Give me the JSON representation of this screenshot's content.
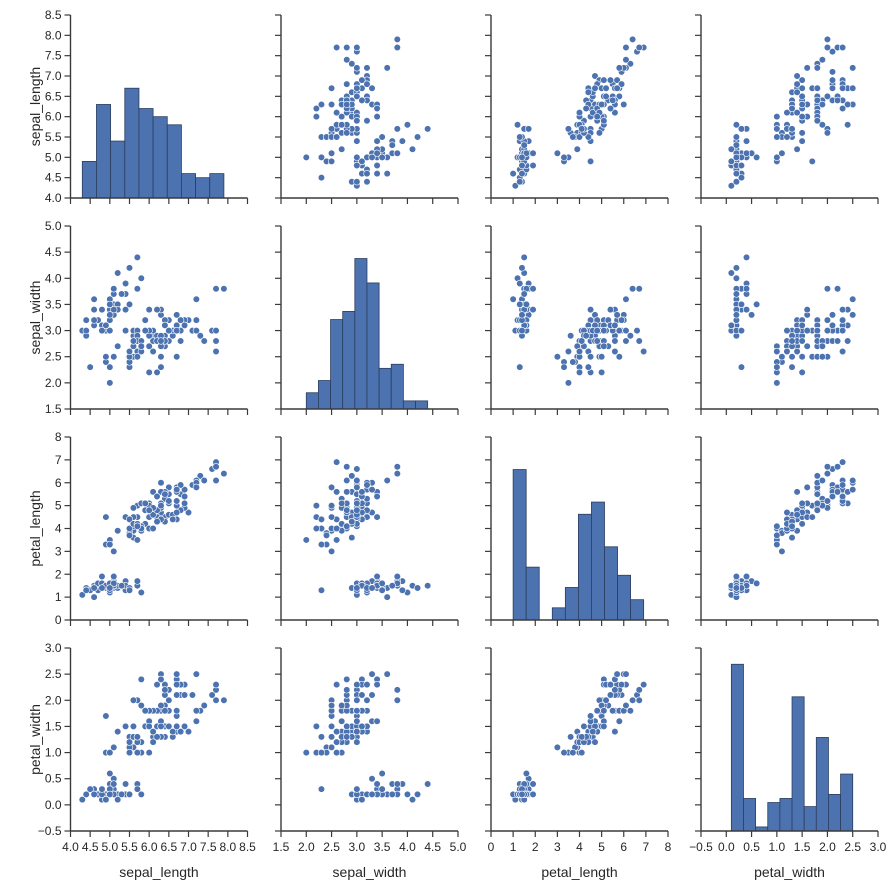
{
  "chart_data": {
    "type": "scatter",
    "subtype": "pairplot",
    "grid": false,
    "colors": {
      "marker": "#4c72b0",
      "marker_edge": "#ffffff",
      "bar_edge": "#2b3e5f",
      "spine": "#3a3a3a"
    },
    "variables": [
      "sepal_length",
      "sepal_width",
      "petal_length",
      "petal_width"
    ],
    "axis_ranges": {
      "sepal_length": [
        4.0,
        8.5
      ],
      "sepal_width": [
        1.5,
        5.0
      ],
      "petal_length": [
        0,
        8
      ],
      "petal_width": [
        -0.5,
        3.0
      ]
    },
    "ticks": {
      "sepal_length": [
        "4.0",
        "4.5",
        "5.0",
        "5.5",
        "6.0",
        "6.5",
        "7.0",
        "7.5",
        "8.0",
        "8.5"
      ],
      "sepal_width": [
        "1.5",
        "2.0",
        "2.5",
        "3.0",
        "3.5",
        "4.0",
        "4.5",
        "5.0"
      ],
      "petal_length": [
        "0",
        "1",
        "2",
        "3",
        "4",
        "5",
        "6",
        "7",
        "8"
      ],
      "petal_width": [
        "−0.5",
        "0.0",
        "0.5",
        "1.0",
        "1.5",
        "2.0",
        "2.5",
        "3.0"
      ]
    },
    "diagonal": {
      "type": "histogram",
      "bins": 10,
      "count_range": [
        0,
        45
      ],
      "counts": {
        "sepal_length": [
          9,
          23,
          14,
          27,
          22,
          20,
          18,
          6,
          5,
          6
        ],
        "sepal_width": [
          4,
          7,
          22,
          24,
          37,
          31,
          10,
          11,
          2,
          2
        ],
        "petal_length": [
          37,
          13,
          0,
          3,
          8,
          26,
          29,
          18,
          11,
          5
        ],
        "petal_width": [
          41,
          8,
          1,
          7,
          8,
          33,
          6,
          23,
          9,
          14
        ]
      }
    },
    "data": {
      "sepal_length": [
        5.1,
        4.9,
        4.7,
        4.6,
        5.0,
        5.4,
        4.6,
        5.0,
        4.4,
        4.9,
        5.4,
        4.8,
        4.8,
        4.3,
        5.8,
        5.7,
        5.4,
        5.1,
        5.7,
        5.1,
        5.4,
        5.1,
        4.6,
        5.1,
        4.8,
        5.0,
        5.0,
        5.2,
        5.2,
        4.7,
        4.8,
        5.4,
        5.2,
        5.5,
        4.9,
        5.0,
        5.5,
        4.9,
        4.4,
        5.1,
        5.0,
        4.5,
        4.4,
        5.0,
        5.1,
        4.8,
        5.1,
        4.6,
        5.3,
        5.0,
        7.0,
        6.4,
        6.9,
        5.5,
        6.5,
        5.7,
        6.3,
        4.9,
        6.6,
        5.2,
        5.0,
        5.9,
        6.0,
        6.1,
        5.6,
        6.7,
        5.6,
        5.8,
        6.2,
        5.6,
        5.9,
        6.1,
        6.3,
        6.1,
        6.4,
        6.6,
        6.8,
        6.7,
        6.0,
        5.7,
        5.5,
        5.5,
        5.8,
        6.0,
        5.4,
        6.0,
        6.7,
        6.3,
        5.6,
        5.5,
        5.5,
        6.1,
        5.8,
        5.0,
        5.6,
        5.7,
        5.7,
        6.2,
        5.1,
        5.7,
        6.3,
        5.8,
        7.1,
        6.3,
        6.5,
        7.6,
        4.9,
        7.3,
        6.7,
        7.2,
        6.5,
        6.4,
        6.8,
        5.7,
        5.8,
        6.4,
        6.5,
        7.7,
        7.7,
        6.0,
        6.9,
        5.6,
        7.7,
        6.3,
        6.7,
        7.2,
        6.2,
        6.1,
        6.4,
        7.2,
        7.4,
        7.9,
        6.4,
        6.3,
        6.1,
        7.7,
        6.3,
        6.4,
        6.0,
        6.9,
        6.7,
        6.9,
        5.8,
        6.8,
        6.7,
        6.7,
        6.3,
        6.5,
        6.2,
        5.9
      ],
      "sepal_width": [
        3.5,
        3.0,
        3.2,
        3.1,
        3.6,
        3.9,
        3.4,
        3.4,
        2.9,
        3.1,
        3.7,
        3.4,
        3.0,
        3.0,
        4.0,
        4.4,
        3.9,
        3.5,
        3.8,
        3.8,
        3.4,
        3.7,
        3.6,
        3.3,
        3.4,
        3.0,
        3.4,
        3.5,
        3.4,
        3.2,
        3.1,
        3.4,
        4.1,
        4.2,
        3.1,
        3.2,
        3.5,
        3.1,
        3.0,
        3.4,
        3.5,
        2.3,
        3.2,
        3.5,
        3.8,
        3.0,
        3.8,
        3.2,
        3.7,
        3.3,
        3.2,
        3.2,
        3.1,
        2.3,
        2.8,
        2.8,
        3.3,
        2.4,
        2.9,
        2.7,
        2.0,
        3.0,
        2.2,
        2.9,
        2.9,
        3.1,
        3.0,
        2.7,
        2.2,
        2.5,
        3.2,
        2.8,
        2.5,
        2.8,
        2.9,
        3.0,
        2.8,
        3.0,
        2.9,
        2.6,
        2.4,
        2.4,
        2.7,
        2.7,
        3.0,
        3.4,
        3.1,
        2.3,
        3.0,
        2.5,
        2.6,
        3.0,
        2.6,
        2.3,
        2.7,
        3.0,
        2.9,
        2.9,
        2.5,
        2.8,
        3.3,
        2.7,
        3.0,
        2.9,
        3.0,
        3.0,
        2.5,
        2.9,
        2.5,
        3.6,
        3.2,
        2.7,
        3.0,
        2.5,
        2.8,
        3.2,
        3.0,
        3.8,
        2.6,
        2.2,
        3.2,
        2.8,
        2.8,
        2.7,
        3.3,
        3.2,
        2.8,
        3.0,
        2.8,
        3.0,
        2.8,
        3.8,
        2.8,
        2.8,
        2.6,
        3.0,
        3.4,
        3.1,
        3.0,
        3.1,
        3.1,
        3.1,
        2.7,
        3.2,
        3.3,
        3.0,
        2.5,
        3.0,
        3.4,
        3.0
      ],
      "petal_length": [
        1.4,
        1.4,
        1.3,
        1.5,
        1.4,
        1.7,
        1.4,
        1.5,
        1.4,
        1.5,
        1.5,
        1.6,
        1.4,
        1.1,
        1.2,
        1.5,
        1.3,
        1.4,
        1.7,
        1.5,
        1.7,
        1.5,
        1.0,
        1.7,
        1.9,
        1.6,
        1.6,
        1.5,
        1.4,
        1.6,
        1.6,
        1.5,
        1.5,
        1.4,
        1.5,
        1.2,
        1.3,
        1.5,
        1.3,
        1.5,
        1.3,
        1.3,
        1.3,
        1.6,
        1.9,
        1.4,
        1.6,
        1.4,
        1.5,
        1.4,
        4.7,
        4.5,
        4.9,
        4.0,
        4.6,
        4.5,
        4.7,
        3.3,
        4.6,
        3.9,
        3.5,
        4.2,
        4.0,
        4.7,
        3.6,
        4.4,
        4.5,
        4.1,
        4.5,
        3.9,
        4.8,
        4.0,
        4.9,
        4.7,
        4.3,
        4.4,
        4.8,
        5.0,
        4.5,
        3.5,
        3.8,
        3.7,
        3.9,
        5.1,
        4.5,
        4.5,
        4.7,
        4.4,
        4.1,
        4.0,
        4.4,
        4.6,
        4.0,
        3.3,
        4.2,
        4.2,
        4.2,
        4.3,
        3.0,
        4.1,
        6.0,
        5.1,
        5.9,
        5.6,
        5.8,
        6.6,
        4.5,
        6.3,
        5.8,
        6.1,
        5.1,
        5.3,
        5.5,
        5.0,
        5.1,
        5.3,
        5.5,
        6.7,
        6.9,
        5.0,
        5.7,
        4.9,
        6.7,
        4.9,
        5.7,
        6.0,
        4.8,
        4.9,
        5.6,
        5.8,
        6.1,
        6.4,
        5.6,
        5.1,
        5.6,
        6.1,
        5.6,
        5.5,
        4.8,
        5.4,
        5.6,
        5.1,
        5.1,
        5.9,
        5.7,
        5.2,
        5.0,
        5.2,
        5.4,
        5.1
      ],
      "petal_width": [
        0.2,
        0.2,
        0.2,
        0.2,
        0.2,
        0.4,
        0.3,
        0.2,
        0.2,
        0.1,
        0.2,
        0.2,
        0.1,
        0.1,
        0.2,
        0.4,
        0.4,
        0.3,
        0.3,
        0.3,
        0.2,
        0.4,
        0.2,
        0.5,
        0.2,
        0.2,
        0.4,
        0.2,
        0.2,
        0.2,
        0.2,
        0.4,
        0.1,
        0.2,
        0.1,
        0.2,
        0.2,
        0.1,
        0.2,
        0.2,
        0.3,
        0.3,
        0.2,
        0.6,
        0.4,
        0.3,
        0.2,
        0.2,
        0.2,
        0.2,
        1.4,
        1.5,
        1.5,
        1.3,
        1.5,
        1.3,
        1.6,
        1.0,
        1.3,
        1.4,
        1.0,
        1.5,
        1.0,
        1.4,
        1.3,
        1.4,
        1.5,
        1.0,
        1.5,
        1.1,
        1.8,
        1.3,
        1.5,
        1.2,
        1.3,
        1.4,
        1.4,
        1.7,
        1.5,
        1.0,
        1.1,
        1.0,
        1.2,
        1.6,
        1.5,
        1.6,
        1.5,
        1.3,
        1.3,
        1.3,
        1.2,
        1.4,
        1.2,
        1.0,
        1.3,
        1.2,
        1.3,
        1.3,
        1.1,
        1.3,
        2.5,
        1.9,
        2.1,
        1.8,
        2.2,
        2.1,
        1.7,
        1.8,
        1.8,
        2.5,
        2.0,
        1.9,
        2.1,
        2.0,
        2.4,
        2.3,
        1.8,
        2.2,
        2.3,
        1.5,
        2.3,
        2.0,
        2.0,
        1.8,
        2.1,
        1.8,
        1.8,
        1.8,
        2.1,
        1.6,
        1.9,
        2.0,
        2.2,
        1.5,
        1.4,
        2.3,
        2.4,
        1.8,
        1.8,
        2.1,
        2.4,
        2.3,
        1.9,
        2.3,
        2.5,
        2.3,
        1.9,
        2.0,
        2.3,
        1.8
      ]
    }
  }
}
